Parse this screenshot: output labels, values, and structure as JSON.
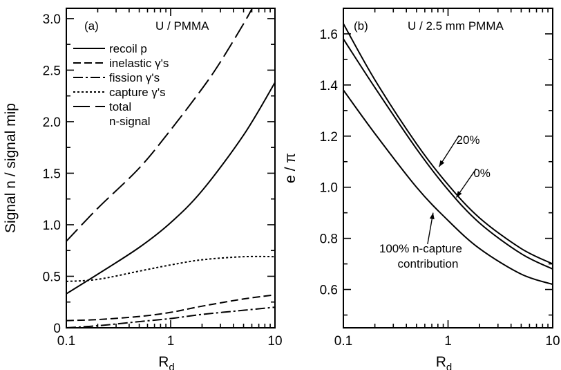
{
  "chart_data": [
    {
      "type": "line",
      "panel_label": "(a)",
      "title": "U / PMMA",
      "xlabel": "R",
      "xlabel_sub": "d",
      "ylabel": "Signal n / signal mip",
      "xscale": "log",
      "xlim": [
        0.1,
        10
      ],
      "ylim": [
        0,
        3.1
      ],
      "xticks": [
        "0.1",
        "1",
        "10"
      ],
      "yticks": [
        "0",
        "0.5",
        "1.0",
        "1.5",
        "2.0",
        "2.5",
        "3.0"
      ],
      "legend": {
        "position": "upper-left",
        "entries": [
          {
            "text": "recoil p",
            "style": "solid"
          },
          {
            "text": "inelastic γ's",
            "style": "dash"
          },
          {
            "text": "fission γ's",
            "style": "dashdot"
          },
          {
            "text": "capture γ's",
            "style": "dot"
          },
          {
            "text": "total",
            "style": "longdash"
          },
          {
            "text": "n-signal",
            "style": "none"
          }
        ]
      },
      "series": [
        {
          "name": "recoil p",
          "style": "solid",
          "x": [
            0.1,
            0.2,
            0.5,
            1,
            2,
            5,
            10
          ],
          "y": [
            0.33,
            0.52,
            0.78,
            1.02,
            1.33,
            1.87,
            2.38
          ]
        },
        {
          "name": "inelastic γ's",
          "style": "dash",
          "x": [
            0.1,
            0.2,
            0.5,
            1,
            2,
            5,
            10
          ],
          "y": [
            0.07,
            0.08,
            0.11,
            0.15,
            0.21,
            0.28,
            0.32
          ]
        },
        {
          "name": "fission γ's",
          "style": "dashdot",
          "x": [
            0.1,
            0.2,
            0.5,
            1,
            2,
            5,
            10
          ],
          "y": [
            0.0,
            0.02,
            0.06,
            0.09,
            0.13,
            0.17,
            0.2
          ]
        },
        {
          "name": "capture γ's",
          "style": "dot",
          "x": [
            0.1,
            0.2,
            0.5,
            1,
            2,
            5,
            10
          ],
          "y": [
            0.45,
            0.47,
            0.55,
            0.61,
            0.66,
            0.69,
            0.69
          ]
        },
        {
          "name": "total n-signal",
          "style": "longdash",
          "x": [
            0.1,
            0.2,
            0.5,
            1,
            2,
            3,
            5,
            6.2
          ],
          "y": [
            0.84,
            1.16,
            1.55,
            1.92,
            2.32,
            2.58,
            2.95,
            3.12
          ]
        }
      ]
    },
    {
      "type": "line",
      "panel_label": "(b)",
      "title": "U / 2.5 mm PMMA",
      "xlabel": "R",
      "xlabel_sub": "d",
      "ylabel": "e / π",
      "xscale": "log",
      "xlim": [
        0.1,
        10
      ],
      "ylim": [
        0.45,
        1.7
      ],
      "xticks": [
        "0.1",
        "1",
        "10"
      ],
      "yticks": [
        "0.6",
        "0.8",
        "1.0",
        "1.2",
        "1.4",
        "1.6"
      ],
      "annotations": [
        {
          "text": "20%",
          "x": 1.2,
          "y": 1.17,
          "arrow_x": 0.82,
          "arrow_y": 1.08
        },
        {
          "text": "0%",
          "x": 1.75,
          "y": 1.04,
          "arrow_x": 1.2,
          "arrow_y": 0.96
        },
        {
          "text": "100% n-capture",
          "x": 0.22,
          "y": 0.745,
          "arrow_x": 0.72,
          "arrow_y": 0.9
        },
        {
          "text": "contribution",
          "x": 0.33,
          "y": 0.685
        }
      ],
      "series": [
        {
          "label": "20%",
          "x": [
            0.1,
            0.2,
            0.5,
            1,
            2,
            5,
            10
          ],
          "y": [
            1.64,
            1.42,
            1.17,
            1.01,
            0.88,
            0.76,
            0.7
          ]
        },
        {
          "label": "0%",
          "x": [
            0.1,
            0.2,
            0.5,
            1,
            2,
            5,
            10
          ],
          "y": [
            1.58,
            1.39,
            1.15,
            0.99,
            0.86,
            0.74,
            0.68
          ]
        },
        {
          "label": "100% n-capture contribution",
          "x": [
            0.1,
            0.2,
            0.5,
            1,
            2,
            5,
            10
          ],
          "y": [
            1.38,
            1.21,
            1.0,
            0.87,
            0.76,
            0.66,
            0.62
          ]
        }
      ]
    }
  ]
}
